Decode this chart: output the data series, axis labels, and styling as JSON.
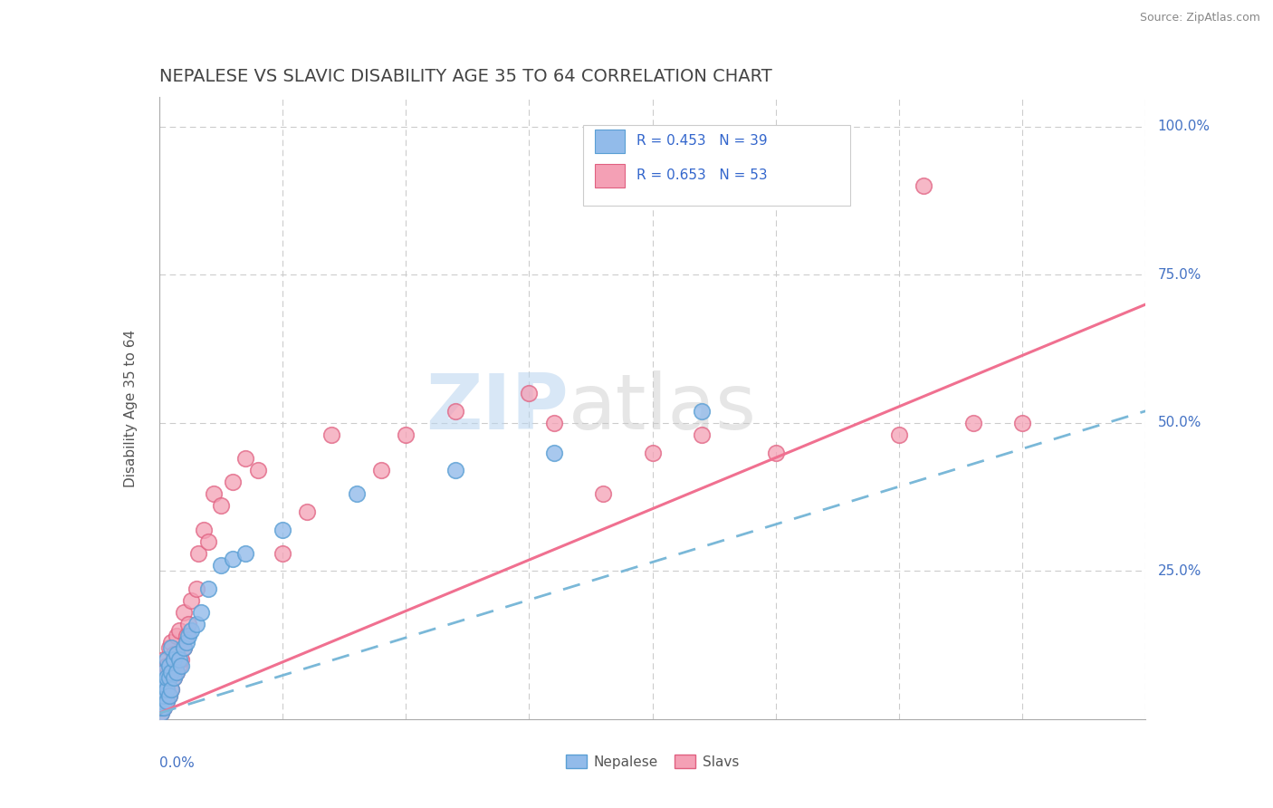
{
  "title": "NEPALESE VS SLAVIC DISABILITY AGE 35 TO 64 CORRELATION CHART",
  "source": "Source: ZipAtlas.com",
  "ylabel": "Disability Age 35 to 64",
  "xlim": [
    0.0,
    0.4
  ],
  "ylim": [
    0.0,
    1.05
  ],
  "nepalese_R": 0.453,
  "nepalese_N": 39,
  "slavic_R": 0.653,
  "slavic_N": 53,
  "nepalese_color": "#92BBEA",
  "nepalese_edge_color": "#5a9fd4",
  "slavic_color": "#F4A0B5",
  "slavic_edge_color": "#e06080",
  "nepalese_line_color": "#7ab8d8",
  "slavic_line_color": "#f07090",
  "legend_label_nepalese": "Nepalese",
  "legend_label_slavic": "Slavs",
  "title_color": "#444444",
  "axis_color": "#aaaaaa",
  "grid_color": "#cccccc",
  "watermark_zip": "ZIP",
  "watermark_atlas": "atlas",
  "nepalese_x": [
    0.001,
    0.001,
    0.001,
    0.001,
    0.002,
    0.002,
    0.002,
    0.002,
    0.003,
    0.003,
    0.003,
    0.003,
    0.004,
    0.004,
    0.004,
    0.005,
    0.005,
    0.005,
    0.006,
    0.006,
    0.007,
    0.007,
    0.008,
    0.009,
    0.01,
    0.011,
    0.012,
    0.013,
    0.015,
    0.017,
    0.02,
    0.025,
    0.03,
    0.035,
    0.05,
    0.08,
    0.12,
    0.16,
    0.22
  ],
  "nepalese_y": [
    0.01,
    0.02,
    0.03,
    0.05,
    0.02,
    0.04,
    0.06,
    0.08,
    0.03,
    0.05,
    0.07,
    0.1,
    0.04,
    0.07,
    0.09,
    0.05,
    0.08,
    0.12,
    0.07,
    0.1,
    0.08,
    0.11,
    0.1,
    0.09,
    0.12,
    0.13,
    0.14,
    0.15,
    0.16,
    0.18,
    0.22,
    0.26,
    0.27,
    0.28,
    0.32,
    0.38,
    0.42,
    0.45,
    0.52
  ],
  "slavic_x": [
    0.001,
    0.001,
    0.001,
    0.002,
    0.002,
    0.002,
    0.002,
    0.003,
    0.003,
    0.003,
    0.004,
    0.004,
    0.004,
    0.005,
    0.005,
    0.005,
    0.006,
    0.006,
    0.007,
    0.007,
    0.008,
    0.008,
    0.009,
    0.01,
    0.01,
    0.011,
    0.012,
    0.013,
    0.015,
    0.016,
    0.018,
    0.02,
    0.022,
    0.025,
    0.03,
    0.035,
    0.04,
    0.05,
    0.06,
    0.07,
    0.09,
    0.1,
    0.12,
    0.15,
    0.16,
    0.18,
    0.2,
    0.22,
    0.25,
    0.3,
    0.33,
    0.35,
    0.31
  ],
  "slavic_y": [
    0.01,
    0.03,
    0.06,
    0.02,
    0.04,
    0.07,
    0.1,
    0.03,
    0.06,
    0.09,
    0.04,
    0.08,
    0.12,
    0.05,
    0.08,
    0.13,
    0.07,
    0.11,
    0.08,
    0.14,
    0.09,
    0.15,
    0.1,
    0.12,
    0.18,
    0.14,
    0.16,
    0.2,
    0.22,
    0.28,
    0.32,
    0.3,
    0.38,
    0.36,
    0.4,
    0.44,
    0.42,
    0.28,
    0.35,
    0.48,
    0.42,
    0.48,
    0.52,
    0.55,
    0.5,
    0.38,
    0.45,
    0.48,
    0.45,
    0.48,
    0.5,
    0.5,
    0.9
  ],
  "nep_line_x0": 0.0,
  "nep_line_y0": 0.01,
  "nep_line_x1": 0.4,
  "nep_line_y1": 0.52,
  "slav_line_x0": 0.0,
  "slav_line_y0": 0.01,
  "slav_line_x1": 0.4,
  "slav_line_y1": 0.7
}
